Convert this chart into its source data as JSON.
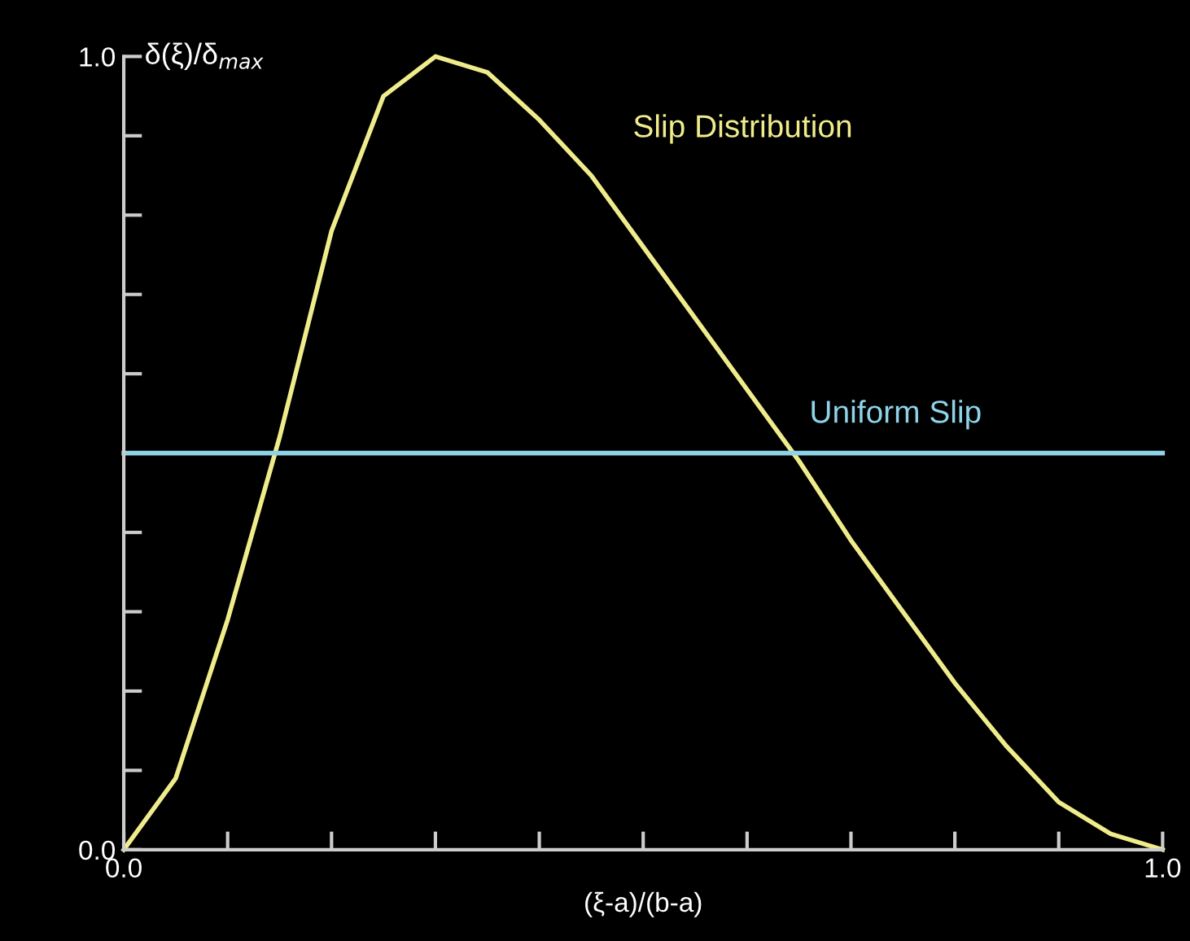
{
  "chart_data": {
    "type": "line",
    "xlabel": "(ξ-a)/(b-a)",
    "ylabel": "δ(ξ)/δ$_{max}$",
    "xlim": [
      0,
      1
    ],
    "ylim": [
      0,
      1
    ],
    "xticks": [
      {
        "value": 0,
        "label": "0.0"
      },
      {
        "value": 0.1,
        "label": null
      },
      {
        "value": 0.2,
        "label": null
      },
      {
        "value": 0.3,
        "label": null
      },
      {
        "value": 0.4,
        "label": null
      },
      {
        "value": 0.5,
        "label": null
      },
      {
        "value": 0.6,
        "label": null
      },
      {
        "value": 0.7,
        "label": null
      },
      {
        "value": 0.8,
        "label": null
      },
      {
        "value": 0.9,
        "label": null
      },
      {
        "value": 1,
        "label": "1.0"
      }
    ],
    "yticks": [
      {
        "value": 0,
        "label": "0.0"
      },
      {
        "value": 0.1,
        "label": null
      },
      {
        "value": 0.2,
        "label": null
      },
      {
        "value": 0.3,
        "label": null
      },
      {
        "value": 0.4,
        "label": null
      },
      {
        "value": 0.5,
        "label": null
      },
      {
        "value": 0.6,
        "label": null
      },
      {
        "value": 0.7,
        "label": null
      },
      {
        "value": 0.8,
        "label": null
      },
      {
        "value": 0.9,
        "label": null
      },
      {
        "value": 1,
        "label": "1.0"
      }
    ],
    "grid": false,
    "legend": false,
    "marker": "none",
    "line_style": "solid",
    "series": [
      {
        "name": "Slip Distribution",
        "color": "#f0ec8c",
        "x": [
          0,
          0.05,
          0.1,
          0.15,
          0.2,
          0.25,
          0.3,
          0.35,
          0.4,
          0.45,
          0.5,
          0.55,
          0.6,
          0.65,
          0.7,
          0.75,
          0.8,
          0.85,
          0.9,
          0.95,
          1
        ],
        "values": [
          0,
          0.09,
          0.29,
          0.52,
          0.78,
          0.95,
          1,
          0.98,
          0.92,
          0.85,
          0.76,
          0.67,
          0.58,
          0.49,
          0.39,
          0.3,
          0.21,
          0.13,
          0.06,
          0.02,
          0
        ]
      },
      {
        "name": "Uniform Slip",
        "color": "#8fd3e8",
        "x": [
          0,
          1
        ],
        "values": [
          0.5,
          0.5
        ]
      }
    ]
  }
}
